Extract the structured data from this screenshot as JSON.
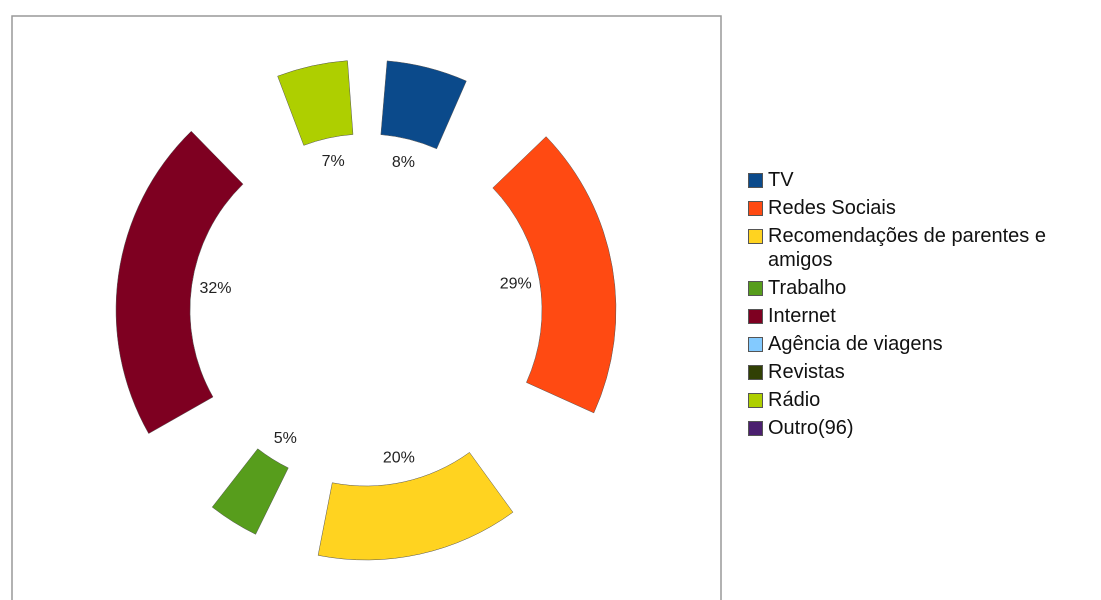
{
  "chart_data": {
    "type": "donut",
    "categories": [
      "TV",
      "Redes Sociais",
      "Recomendações de parentes e amigos",
      "Trabalho",
      "Internet",
      "Agência de viagens",
      "Revistas",
      "Rádio",
      "Outro(96)"
    ],
    "values": [
      8,
      29,
      20,
      5,
      32,
      0,
      0,
      7,
      0
    ],
    "value_labels": [
      "8%",
      "29%",
      "20%",
      "5%",
      "32%",
      null,
      null,
      "7%",
      null
    ],
    "colors": [
      "#0b4a8b",
      "#ff4a12",
      "#ffd320",
      "#579d1c",
      "#7e0021",
      "#83caff",
      "#314004",
      "#aecf00",
      "#4b1f6f"
    ],
    "legend": "right"
  }
}
